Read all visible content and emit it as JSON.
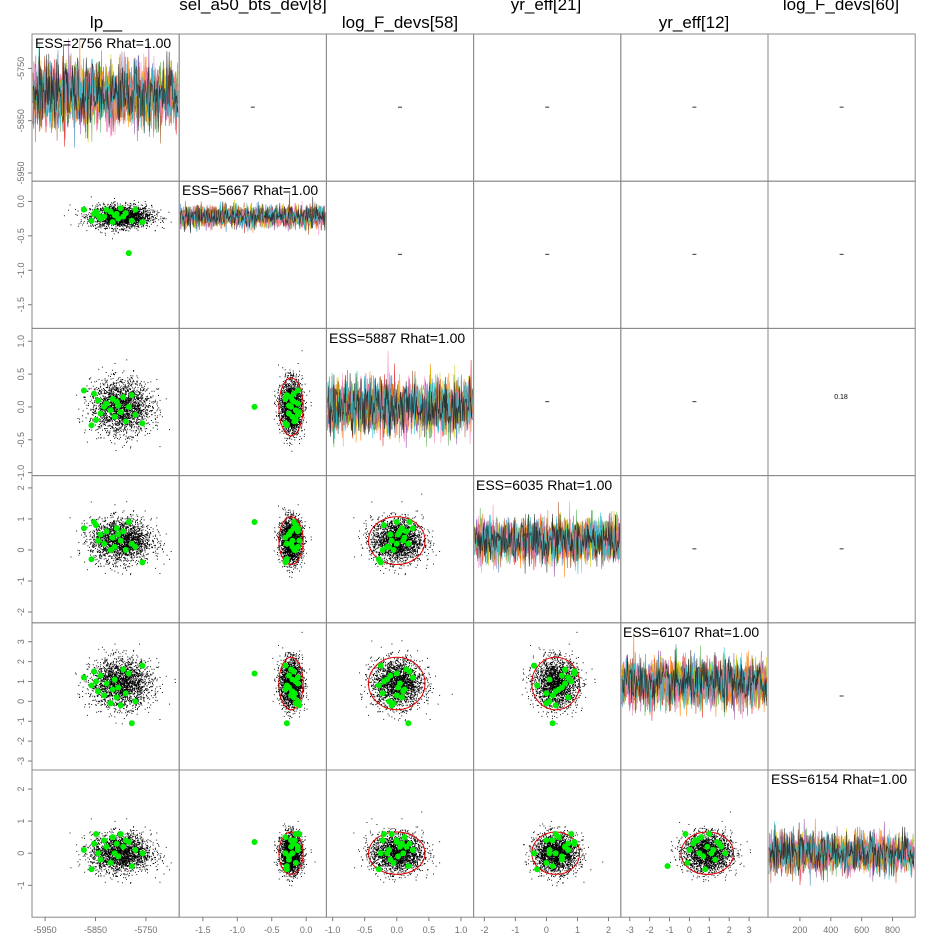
{
  "chart_data": {
    "type": "scatter",
    "variables": [
      "lp__",
      "sel_a50_bts_dev[8]",
      "log_F_devs[58]",
      "yr_eff[21]",
      "yr_eff[12]",
      "log_F_devs[60]"
    ],
    "diagonal": {
      "content": "trace plots of MCMC chains (iterations 0–940)",
      "labels": [
        "ESS=2756 Rhat=1.00",
        "ESS=5667 Rhat=1.00",
        "ESS=5887 Rhat=1.00",
        "ESS=6035 Rhat=1.00",
        "ESS=6107 Rhat=1.00",
        "ESS=6154 Rhat=1.00"
      ],
      "ess": [
        2756,
        5667,
        5887,
        6035,
        6107,
        6154
      ],
      "rhat": [
        1.0,
        1.0,
        1.0,
        1.0,
        1.0,
        1.0
      ],
      "centers": [
        -5800,
        -0.22,
        0.0,
        0.3,
        0.9,
        0.0
      ],
      "spreads": [
        30,
        0.08,
        0.2,
        0.35,
        0.6,
        0.3
      ]
    },
    "upper_triangle": {
      "content": "correlation values (text size proportional to correlation)",
      "highlighted_value": "0.18"
    },
    "lower_triangle": {
      "content": "pairwise posterior samples (black points), highlighted draws (green points), 95% ellipse (red)"
    },
    "axes": [
      {
        "variable": "lp__",
        "ticks": [
          -5950,
          -5850,
          -5750
        ],
        "tick_labels": [
          "-5950",
          "-5850",
          "-5750"
        ],
        "range": [
          -5960,
          -5690
        ]
      },
      {
        "variable": "sel_a50_bts_dev[8]",
        "ticks": [
          -1.5,
          -1.0,
          -0.5,
          0.0
        ],
        "tick_labels": [
          "-1.5",
          "-1.0",
          "-0.5",
          "0.0"
        ],
        "range": [
          -1.8,
          0.25
        ]
      },
      {
        "variable": "log_F_devs[58]",
        "ticks": [
          -1.0,
          -0.5,
          0.0,
          0.5,
          1.0
        ],
        "tick_labels": [
          "-1.0",
          "-0.5",
          "0.0",
          "0.5",
          "1.0"
        ],
        "range": [
          -1.0,
          1.15
        ]
      },
      {
        "variable": "yr_eff[21]",
        "ticks": [
          -2,
          -1,
          0,
          1,
          2
        ],
        "tick_labels": [
          "-2",
          "-1",
          "0",
          "1",
          "2"
        ],
        "range": [
          -2.25,
          2.3
        ]
      },
      {
        "variable": "yr_eff[12]",
        "ticks": [
          -3,
          -2,
          -1,
          0,
          1,
          2,
          3
        ],
        "tick_labels": [
          "-3",
          "-2",
          "-1",
          "0",
          "1",
          "2",
          "3"
        ],
        "range": [
          -3.3,
          3.8
        ]
      },
      {
        "variable": "log_F_devs[60]",
        "ticks": [
          -1,
          0,
          1,
          2
        ],
        "tick_labels": [
          "-1",
          "0",
          "1",
          "2"
        ],
        "range": [
          -1.9,
          2.5
        ]
      }
    ],
    "x_axis_ranges": [
      [
        -5970,
        -5690
      ],
      [
        -1.8,
        0.25
      ],
      [
        -1.05,
        1.15
      ],
      [
        -2.25,
        2.3
      ],
      [
        -3.3,
        3.8
      ],
      [
        -1.9,
        2.5
      ]
    ],
    "trace_x_axis": {
      "ticks": [
        200,
        400,
        600,
        800
      ],
      "tick_labels": [
        "200",
        "400",
        "600",
        "800"
      ],
      "range": [
        0,
        940
      ]
    },
    "green_points": {
      "lp__": [
        -5873,
        -5858,
        -5853,
        -5849,
        -5845,
        -5840,
        -5833,
        -5828,
        -5820,
        -5816,
        -5812,
        -5808,
        -5805,
        -5800,
        -5795,
        -5790,
        -5784,
        -5778,
        -5771,
        -5757
      ],
      "sel_a50_bts_dev[8]": [
        -0.12,
        -0.28,
        -0.18,
        -0.15,
        -0.2,
        -0.25,
        -0.22,
        -0.12,
        -0.15,
        -0.3,
        -0.2,
        -0.18,
        -0.25,
        -0.1,
        -0.22,
        -0.17,
        -0.75,
        -0.28,
        -0.12,
        -0.3
      ],
      "log_F_devs[58]": [
        0.25,
        -0.28,
        0.2,
        -0.2,
        0.1,
        -0.1,
        0.0,
        0.05,
        -0.05,
        0.12,
        -0.15,
        0.08,
        0.02,
        -0.08,
        0.15,
        -0.22,
        0.0,
        0.18,
        -0.12,
        -0.25
      ],
      "yr_eff[21]": [
        0.7,
        -0.3,
        0.9,
        0.8,
        0.3,
        0.5,
        0.2,
        0.6,
        0.0,
        0.4,
        0.1,
        0.7,
        0.5,
        0.3,
        0.6,
        0.0,
        0.9,
        0.2,
        0.1,
        -0.4
      ],
      "yr_eff[12]": [
        1.2,
        0.8,
        1.5,
        1.0,
        0.5,
        1.3,
        0.3,
        0.9,
        -0.1,
        0.6,
        1.1,
        0.2,
        0.7,
        -0.2,
        1.6,
        0.4,
        1.4,
        -1.1,
        0.0,
        1.8
      ],
      "log_F_devs[60]": [
        0.1,
        -0.5,
        0.3,
        0.6,
        0.0,
        -0.2,
        0.4,
        0.2,
        -0.3,
        0.5,
        0.0,
        0.3,
        -0.1,
        0.6,
        0.2,
        0.4,
        0.35,
        -0.4,
        0.1,
        0.0
      ]
    },
    "colors": {
      "points": "#000000",
      "highlighted_points": "#00ee00",
      "ellipse": "#e00000",
      "trace_chains": [
        "#e41a1c",
        "#377eb8",
        "#4daf4a",
        "#984ea3",
        "#ff7f00",
        "#d4c400",
        "#a65628",
        "#f781bf",
        "#17becf",
        "#222222"
      ]
    }
  }
}
